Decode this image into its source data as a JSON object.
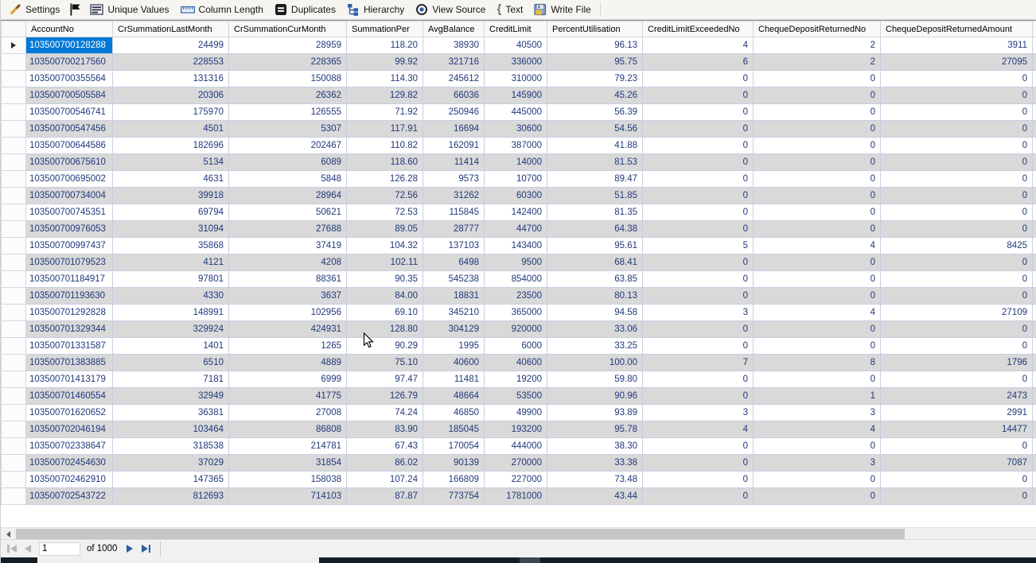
{
  "toolbar": {
    "settings": "Settings",
    "unique_values": "Unique Values",
    "column_length": "Column Length",
    "duplicates": "Duplicates",
    "hierarchy": "Hierarchy",
    "view_source": "View Source",
    "text": "Text",
    "write_file": "Write File"
  },
  "icons": {
    "settings": "wrench-icon",
    "flag": "black-flag-icon",
    "unique_values": "list-rows-icon",
    "column_length": "ruler-icon",
    "duplicates": "equals-square-icon",
    "hierarchy": "tree-nodes-icon",
    "view_source": "target-eye-icon",
    "text": "curly-brace-icon",
    "write_file": "floppy-save-icon"
  },
  "grid": {
    "columns": [
      "AccountNo",
      "CrSummationLastMonth",
      "CrSummationCurMonth",
      "SummationPer",
      "AvgBalance",
      "CreditLimit",
      "PercentUtilisation",
      "CreditLimitExceededNo",
      "ChequeDepositReturnedNo",
      "ChequeDepositReturnedAmount"
    ],
    "selected": {
      "row": 0,
      "col": 0
    },
    "rows": [
      [
        "103500700128288",
        "24499",
        "28959",
        "118.20",
        "38930",
        "40500",
        "96.13",
        "4",
        "2",
        "3911"
      ],
      [
        "103500700217560",
        "228553",
        "228365",
        "99.92",
        "321716",
        "336000",
        "95.75",
        "6",
        "2",
        "27095"
      ],
      [
        "103500700355564",
        "131316",
        "150088",
        "114.30",
        "245612",
        "310000",
        "79.23",
        "0",
        "0",
        "0"
      ],
      [
        "103500700505584",
        "20306",
        "26362",
        "129.82",
        "66036",
        "145900",
        "45.26",
        "0",
        "0",
        "0"
      ],
      [
        "103500700546741",
        "175970",
        "126555",
        "71.92",
        "250946",
        "445000",
        "56.39",
        "0",
        "0",
        "0"
      ],
      [
        "103500700547456",
        "4501",
        "5307",
        "117.91",
        "16694",
        "30600",
        "54.56",
        "0",
        "0",
        "0"
      ],
      [
        "103500700644586",
        "182696",
        "202467",
        "110.82",
        "162091",
        "387000",
        "41.88",
        "0",
        "0",
        "0"
      ],
      [
        "103500700675610",
        "5134",
        "6089",
        "118.60",
        "11414",
        "14000",
        "81.53",
        "0",
        "0",
        "0"
      ],
      [
        "103500700695002",
        "4631",
        "5848",
        "126.28",
        "9573",
        "10700",
        "89.47",
        "0",
        "0",
        "0"
      ],
      [
        "103500700734004",
        "39918",
        "28964",
        "72.56",
        "31262",
        "60300",
        "51.85",
        "0",
        "0",
        "0"
      ],
      [
        "103500700745351",
        "69794",
        "50621",
        "72.53",
        "115845",
        "142400",
        "81.35",
        "0",
        "0",
        "0"
      ],
      [
        "103500700976053",
        "31094",
        "27688",
        "89.05",
        "28777",
        "44700",
        "64.38",
        "0",
        "0",
        "0"
      ],
      [
        "103500700997437",
        "35868",
        "37419",
        "104.32",
        "137103",
        "143400",
        "95.61",
        "5",
        "4",
        "8425"
      ],
      [
        "103500701079523",
        "4121",
        "4208",
        "102.11",
        "6498",
        "9500",
        "68.41",
        "0",
        "0",
        "0"
      ],
      [
        "103500701184917",
        "97801",
        "88361",
        "90.35",
        "545238",
        "854000",
        "63.85",
        "0",
        "0",
        "0"
      ],
      [
        "103500701193630",
        "4330",
        "3637",
        "84.00",
        "18831",
        "23500",
        "80.13",
        "0",
        "0",
        "0"
      ],
      [
        "103500701292828",
        "148991",
        "102956",
        "69.10",
        "345210",
        "365000",
        "94.58",
        "3",
        "4",
        "27109"
      ],
      [
        "103500701329344",
        "329924",
        "424931",
        "128.80",
        "304129",
        "920000",
        "33.06",
        "0",
        "0",
        "0"
      ],
      [
        "103500701331587",
        "1401",
        "1265",
        "90.29",
        "1995",
        "6000",
        "33.25",
        "0",
        "0",
        "0"
      ],
      [
        "103500701383885",
        "6510",
        "4889",
        "75.10",
        "40600",
        "40600",
        "100.00",
        "7",
        "8",
        "1796"
      ],
      [
        "103500701413179",
        "7181",
        "6999",
        "97.47",
        "11481",
        "19200",
        "59.80",
        "0",
        "0",
        "0"
      ],
      [
        "103500701460554",
        "32949",
        "41775",
        "126.79",
        "48664",
        "53500",
        "90.96",
        "0",
        "1",
        "2473"
      ],
      [
        "103500701620652",
        "36381",
        "27008",
        "74.24",
        "46850",
        "49900",
        "93.89",
        "3",
        "3",
        "2991"
      ],
      [
        "103500702046194",
        "103464",
        "86808",
        "83.90",
        "185045",
        "193200",
        "95.78",
        "4",
        "4",
        "14477"
      ],
      [
        "103500702338647",
        "318538",
        "214781",
        "67.43",
        "170054",
        "444000",
        "38.30",
        "0",
        "0",
        "0"
      ],
      [
        "103500702454630",
        "37029",
        "31854",
        "86.02",
        "90139",
        "270000",
        "33.38",
        "0",
        "3",
        "7087"
      ],
      [
        "103500702462910",
        "147365",
        "158038",
        "107.24",
        "166809",
        "227000",
        "73.48",
        "0",
        "0",
        "0"
      ],
      [
        "103500702543722",
        "812693",
        "714103",
        "87.87",
        "773754",
        "1781000",
        "43.44",
        "0",
        "0",
        "0"
      ]
    ]
  },
  "pager": {
    "current_page": "1",
    "total_label": "of 1000"
  },
  "colors": {
    "selection_blue": "#0078d7",
    "row_alt_gray": "#d9d9d9",
    "cell_text_navy": "#21397c",
    "pager_arrow_blue": "#2a5da4",
    "taskbar_dark": "#141d29"
  }
}
